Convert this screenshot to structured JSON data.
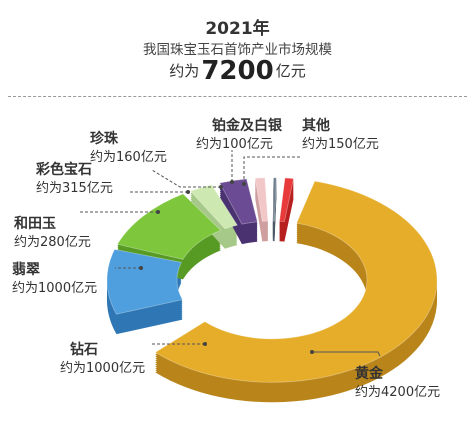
{
  "header": {
    "year": "2021年",
    "subtitle": "我国珠宝玉石首饰产业市场规模",
    "total_prefix": "约为",
    "total_value": "7200",
    "total_suffix": "亿元"
  },
  "chart_data": {
    "type": "pie",
    "title": "我国珠宝玉石首饰产业市场规模",
    "total": 7200,
    "unit": "亿元",
    "slices": [
      {
        "name": "黄金",
        "value": 4200,
        "value_label": "约为4200亿元",
        "color": "#e6ad2b",
        "side": "#b9851a"
      },
      {
        "name": "钻石",
        "value": 1000,
        "value_label": "约为1000亿元",
        "color": "#4f9fde",
        "side": "#2f77b4"
      },
      {
        "name": "翡翠",
        "value": 1000,
        "value_label": "约为1000亿元",
        "color": "#7ec73d",
        "side": "#579a24"
      },
      {
        "name": "和田玉",
        "value": 280,
        "value_label": "约为280亿元",
        "color": "#cde8b0",
        "side": "#a6c888"
      },
      {
        "name": "彩色宝石",
        "value": 315,
        "value_label": "约为315亿元",
        "color": "#6b4b93",
        "side": "#4a3270"
      },
      {
        "name": "珍珠",
        "value": 160,
        "value_label": "约为160亿元",
        "color": "#f2c7c7",
        "side": "#cf9f9f"
      },
      {
        "name": "铂金及白银",
        "value": 100,
        "value_label": "约为100亿元",
        "color": "#6f7f8d",
        "side": "#4c5966"
      },
      {
        "name": "其他",
        "value": 150,
        "value_label": "约为150亿元",
        "color": "#e83a3a",
        "side": "#b82020"
      }
    ]
  }
}
